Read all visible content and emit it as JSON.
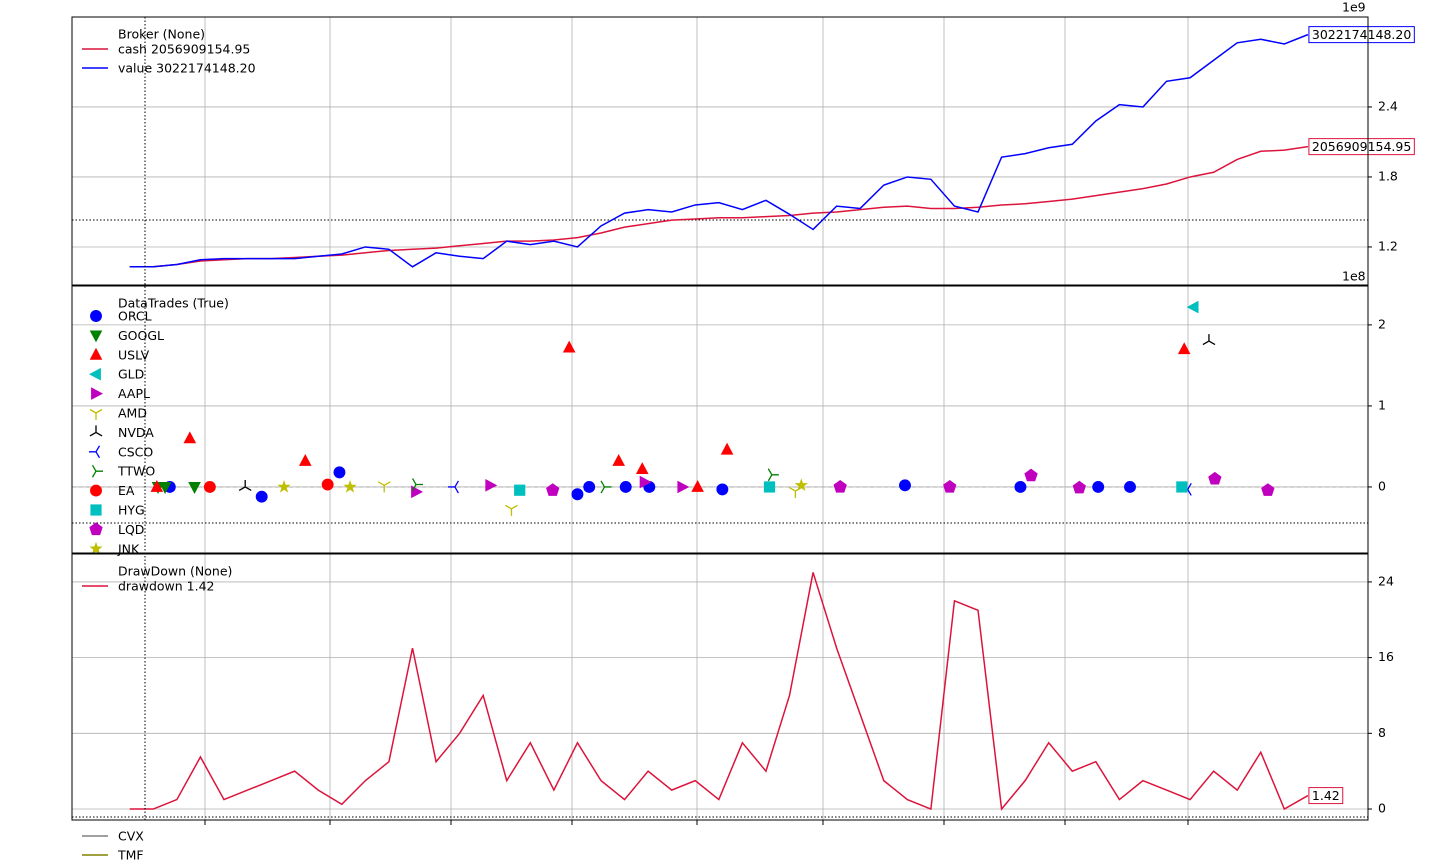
{
  "chart_data": [
    {
      "type": "line",
      "offset_label": "1e9",
      "legend_title": "Broker (None)",
      "x": [
        0,
        2,
        4,
        6,
        8,
        10,
        12,
        14,
        16,
        18,
        20,
        22,
        24,
        26,
        28,
        30,
        32,
        34,
        36,
        38,
        40,
        42,
        44,
        46,
        48,
        50,
        52,
        54,
        56,
        58,
        60,
        62,
        64,
        66,
        68,
        70,
        72,
        74,
        76,
        78,
        80,
        82,
        84,
        86,
        88,
        90,
        92,
        94,
        96,
        98,
        100
      ],
      "xlim": [
        -4.9,
        105.1
      ],
      "ylim": [
        0.874,
        3.171
      ],
      "yticks": [
        1.2,
        1.8,
        2.4
      ],
      "grid": true,
      "series": [
        {
          "name": "cash 2056909154.95",
          "color": "#dc143c",
          "end_label": "2056909154.95",
          "values": [
            1.03,
            1.03,
            1.05,
            1.08,
            1.09,
            1.1,
            1.1,
            1.11,
            1.12,
            1.13,
            1.15,
            1.17,
            1.18,
            1.19,
            1.21,
            1.23,
            1.25,
            1.25,
            1.26,
            1.28,
            1.32,
            1.37,
            1.4,
            1.43,
            1.44,
            1.45,
            1.45,
            1.46,
            1.47,
            1.49,
            1.5,
            1.52,
            1.54,
            1.55,
            1.53,
            1.53,
            1.54,
            1.56,
            1.57,
            1.59,
            1.61,
            1.64,
            1.67,
            1.7,
            1.74,
            1.8,
            1.84,
            1.95,
            2.02,
            2.03,
            2.06
          ]
        },
        {
          "name": "value 3022174148.20",
          "color": "#0000ff",
          "end_label": "3022174148.20",
          "values": [
            1.03,
            1.03,
            1.05,
            1.09,
            1.1,
            1.1,
            1.1,
            1.1,
            1.12,
            1.14,
            1.2,
            1.18,
            1.03,
            1.15,
            1.12,
            1.1,
            1.25,
            1.22,
            1.25,
            1.2,
            1.38,
            1.49,
            1.52,
            1.5,
            1.56,
            1.58,
            1.52,
            1.6,
            1.48,
            1.35,
            1.55,
            1.53,
            1.73,
            1.8,
            1.78,
            1.55,
            1.5,
            1.97,
            2.0,
            2.05,
            2.08,
            2.28,
            2.42,
            2.4,
            2.62,
            2.65,
            2.8,
            2.95,
            2.98,
            2.94,
            3.02
          ]
        }
      ]
    },
    {
      "type": "scatter",
      "offset_label": "1e8",
      "legend_title": "DataTrades (True)",
      "xlim": [
        -4.9,
        105.1
      ],
      "ylim": [
        -0.815,
        2.48
      ],
      "yticks": [
        0,
        1,
        2
      ],
      "grid": true,
      "series": [
        {
          "name": "ORCL",
          "color": "#0000ff",
          "marker": "circle",
          "x": [
            3.4,
            11.2,
            17.8,
            38.0,
            39.0,
            42.1,
            44.1,
            50.3,
            65.8,
            75.6,
            82.2,
            84.9
          ],
          "values": [
            0,
            -0.12,
            0.18,
            -0.09,
            0,
            0,
            0,
            -0.03,
            0.02,
            0,
            0,
            0
          ]
        },
        {
          "name": "GOOGL",
          "color": "#008000",
          "marker": "down",
          "x": [
            2.4,
            3.0,
            5.5
          ],
          "values": [
            0,
            0,
            0
          ]
        },
        {
          "name": "USLV",
          "color": "#ff0000",
          "marker": "up",
          "x": [
            5.1,
            14.9,
            37.3,
            41.5,
            43.5,
            50.7,
            89.5,
            2.3,
            48.2
          ],
          "values": [
            0.6,
            0.32,
            1.72,
            0.32,
            0.22,
            0.46,
            1.7,
            0,
            0
          ]
        },
        {
          "name": "GLD",
          "color": "#00bfbf",
          "marker": "left",
          "x": [
            90.3
          ],
          "values": [
            2.22
          ]
        },
        {
          "name": "AAPL",
          "color": "#bf00bf",
          "marker": "right",
          "x": [
            24.3,
            30.6,
            43.7,
            46.9
          ],
          "values": [
            -0.06,
            0.02,
            0.06,
            0
          ]
        },
        {
          "name": "AMD",
          "color": "#bfbf00",
          "marker": "tri_down",
          "x": [
            32.4,
            21.6,
            56.5
          ],
          "values": [
            -0.27,
            0.02,
            -0.05
          ]
        },
        {
          "name": "NVDA",
          "color": "#000000",
          "marker": "tri_up",
          "x": [
            91.6,
            9.8
          ],
          "values": [
            1.8,
            0
          ]
        },
        {
          "name": "CSCO",
          "color": "#0000ff",
          "marker": "tri_left",
          "x": [
            27.6,
            89.8
          ],
          "values": [
            0,
            -0.03
          ]
        },
        {
          "name": "TTWO",
          "color": "#008000",
          "marker": "tri_right",
          "x": [
            54.5,
            24.3,
            40.3
          ],
          "values": [
            0.15,
            0.03,
            0
          ]
        },
        {
          "name": "EA",
          "color": "#ff0000",
          "marker": "circle",
          "x": [
            16.8,
            6.8
          ],
          "values": [
            0.03,
            0
          ]
        },
        {
          "name": "HYG",
          "color": "#00bfbf",
          "marker": "square",
          "x": [
            33.1,
            54.3,
            89.3
          ],
          "values": [
            -0.04,
            0,
            0
          ]
        },
        {
          "name": "LQD",
          "color": "#bf00bf",
          "marker": "pentagon",
          "x": [
            35.9,
            60.3,
            69.6,
            76.5,
            80.6,
            96.6,
            92.1
          ],
          "values": [
            -0.04,
            0,
            0,
            0.14,
            -0.01,
            -0.04,
            0.1
          ]
        },
        {
          "name": "JNK",
          "color": "#bfbf00",
          "marker": "star",
          "x": [
            13.1,
            18.7,
            57.0
          ],
          "values": [
            0,
            0,
            0.02
          ]
        }
      ]
    },
    {
      "type": "line",
      "legend_title": "DrawDown (None)",
      "x": [
        0,
        2,
        4,
        6,
        8,
        10,
        12,
        14,
        16,
        18,
        20,
        22,
        24,
        26,
        28,
        30,
        32,
        34,
        36,
        38,
        40,
        42,
        44,
        46,
        48,
        50,
        52,
        54,
        56,
        58,
        60,
        62,
        64,
        66,
        68,
        70,
        72,
        74,
        76,
        78,
        80,
        82,
        84,
        86,
        88,
        90,
        92,
        94,
        96,
        98,
        100
      ],
      "xlim": [
        -4.9,
        105.1
      ],
      "ylim": [
        -1.16,
        26.95
      ],
      "yticks": [
        0,
        8,
        16,
        24
      ],
      "grid": true,
      "series": [
        {
          "name": "drawdown 1.42",
          "color": "#dc143c",
          "end_label": "1.42",
          "values": [
            0,
            0,
            1,
            5.5,
            1,
            2,
            3,
            4,
            2,
            0.5,
            3,
            5,
            17,
            5,
            8,
            12,
            3,
            7,
            2,
            7,
            3,
            1,
            4,
            2,
            3,
            1,
            7,
            4,
            12,
            25,
            17,
            10,
            3,
            1,
            0,
            22,
            21,
            0,
            3,
            7,
            4,
            5,
            1,
            3,
            2,
            1,
            4,
            2,
            6,
            0,
            1.42
          ]
        }
      ]
    },
    {
      "type": "legend",
      "entries": [
        {
          "name": "CVX",
          "color": "#808080"
        },
        {
          "name": "TMF",
          "color": "#808000"
        }
      ]
    }
  ]
}
